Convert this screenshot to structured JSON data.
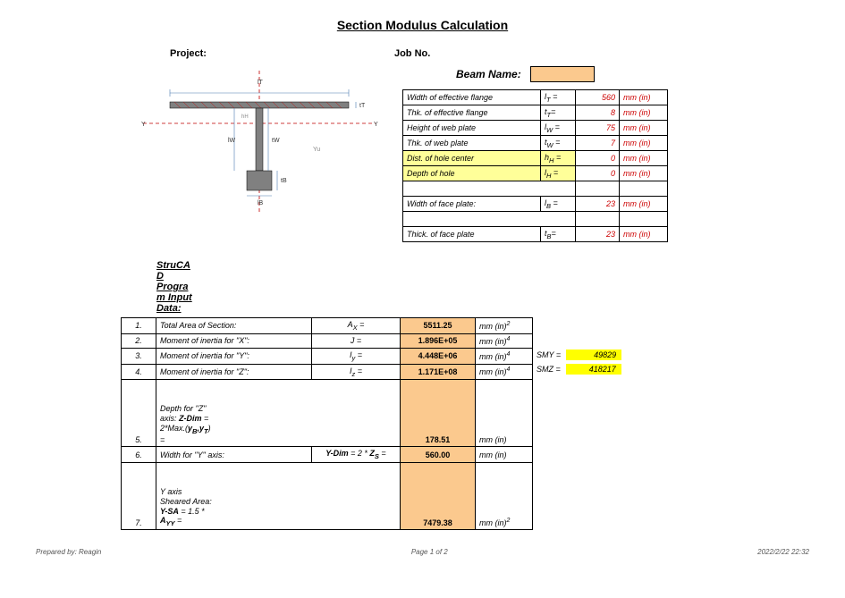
{
  "title": "Section Modulus Calculation",
  "header": {
    "project_label": "Project:",
    "jobno_label": "Job No."
  },
  "beam_name_label": "Beam Name:",
  "params": [
    {
      "label": "Width of effective flange",
      "sym": "l<sub>T</sub> =",
      "val": "560",
      "unit": "mm (in)",
      "hl": false
    },
    {
      "label": "Thk. of effective flange",
      "sym": "t<sub>T</sub>=",
      "val": "8",
      "unit": "mm (in)",
      "hl": false
    },
    {
      "label": "Height of web plate",
      "sym": "l<sub>W</sub> =",
      "val": "75",
      "unit": "mm (in)",
      "hl": false
    },
    {
      "label": "Thk. of web plate",
      "sym": "t<sub>W</sub> =",
      "val": "7",
      "unit": "mm (in)",
      "hl": false
    },
    {
      "label": "Dist. of hole center",
      "sym": "h<sub>H</sub> =",
      "val": "0",
      "unit": "mm (in)",
      "hl": true
    },
    {
      "label": "Depth of hole",
      "sym": "l<sub>H</sub> =",
      "val": "0",
      "unit": "mm (in)",
      "hl": true
    }
  ],
  "params_extra": [
    {
      "label": "Width of face plate:",
      "sym": "l<sub>B</sub> =",
      "val": "23",
      "unit": "mm (in)"
    },
    {
      "label": "Thick. of face plate",
      "sym": "t<sub>B</sub>=",
      "val": "23",
      "unit": "mm (in)"
    }
  ],
  "section_label_lines": [
    "StruCA",
    "D",
    "Progra",
    "m Input",
    "Data:"
  ],
  "results": [
    {
      "n": "1.",
      "desc": "Total Area of Section:",
      "sym": "A<sub>X</sub> =",
      "val": "5511.25",
      "unit": "mm (in)<sup>2</sup>"
    },
    {
      "n": "2.",
      "desc": "Moment of inertia for \"X\":",
      "sym": "J =",
      "val": "1.896E+05",
      "unit": "mm (in)<sup>4</sup>"
    },
    {
      "n": "3.",
      "desc": "Moment of inertia for \"Y\":",
      "sym": "I<sub>y</sub> =",
      "val": "4.448E+06",
      "unit": "mm (in)<sup>4</sup>"
    },
    {
      "n": "4.",
      "desc": "Moment of inertia for \"Z\":",
      "sym": "I<sub>z</sub> =",
      "val": "1.171E+08",
      "unit": "mm (in)<sup>4</sup>"
    },
    {
      "n": "5.",
      "desc": "Depth for \"Z\" axis: <b>Z-Dim</b> = 2*Max.(<b>y<sub>B</sub>,y<sub>T</sub></b>) =",
      "sym": "",
      "val": "178.51",
      "unit": "mm (in)"
    },
    {
      "n": "6.",
      "desc": "Width for \"Y\" axis:",
      "sym": "<b>Y-Dim</b> = 2 * <b>Z<sub>S</sub></b> =",
      "val": "560.00",
      "unit": "mm (in)"
    },
    {
      "n": "7.",
      "desc": "Y axis Sheared Area: <b>Y-SA</b> = 1.5 * <b>A<sub>YY</sub></b> =",
      "sym": "",
      "val": "7479.38",
      "unit": "mm (in)<sup>2</sup>"
    }
  ],
  "side": [
    {
      "label": "SMY =",
      "val": "49829"
    },
    {
      "label": "SMZ =",
      "val": "418217"
    }
  ],
  "footer": {
    "prepared": "Prepared by: Reagin",
    "page": "Page 1 of 2",
    "date": "2022/2/22   22:32"
  },
  "diagram": {
    "flange_color": "#808080",
    "web_color": "#808080",
    "face_color": "#808080",
    "axis_color": "#c00000",
    "dim_color": "#4a7ab0"
  }
}
